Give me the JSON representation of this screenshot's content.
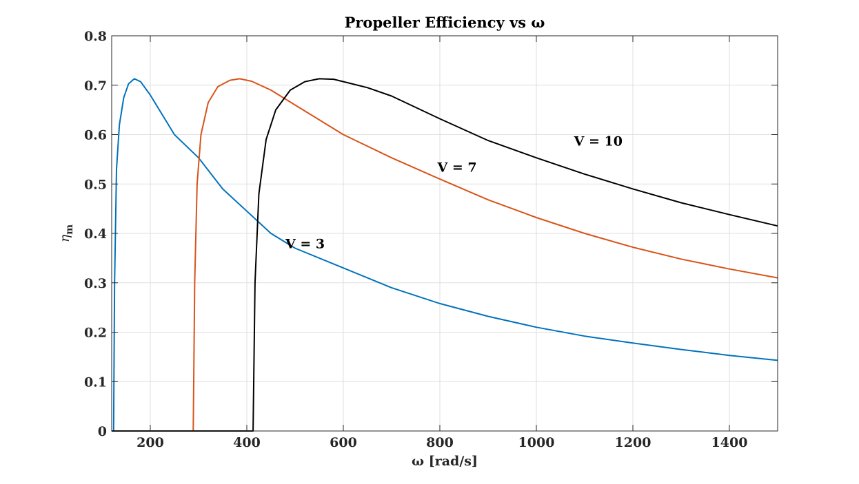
{
  "chart_data": {
    "type": "line",
    "title": "Propeller Efficiency vs ω",
    "xlabel": "ω [rad/s]",
    "ylabel": "η",
    "ylabel_subscript": "m",
    "xlim": [
      120,
      1500
    ],
    "ylim": [
      0,
      0.8
    ],
    "xticks": [
      200,
      400,
      600,
      800,
      1000,
      1200,
      1400
    ],
    "yticks": [
      0,
      0.1,
      0.2,
      0.3,
      0.4,
      0.5,
      0.6,
      0.7,
      0.8
    ],
    "ytick_labels": [
      "0",
      "0.1",
      "0.2",
      "0.3",
      "0.4",
      "0.5",
      "0.6",
      "0.7",
      "0.8"
    ],
    "grid": true,
    "series": [
      {
        "color": "#0072bd",
        "points": [
          [
            120,
            0
          ],
          [
            124,
            0
          ],
          [
            126,
            0.3
          ],
          [
            130,
            0.53
          ],
          [
            136,
            0.62
          ],
          [
            145,
            0.675
          ],
          [
            155,
            0.703
          ],
          [
            167,
            0.713
          ],
          [
            180,
            0.707
          ],
          [
            200,
            0.68
          ],
          [
            250,
            0.6
          ],
          [
            300,
            0.553
          ],
          [
            350,
            0.49
          ],
          [
            400,
            0.445
          ],
          [
            450,
            0.4
          ],
          [
            500,
            0.37
          ],
          [
            600,
            0.33
          ],
          [
            700,
            0.29
          ],
          [
            800,
            0.258
          ],
          [
            900,
            0.232
          ],
          [
            1000,
            0.21
          ],
          [
            1100,
            0.192
          ],
          [
            1200,
            0.178
          ],
          [
            1300,
            0.165
          ],
          [
            1400,
            0.153
          ],
          [
            1500,
            0.143
          ]
        ]
      },
      {
        "color": "#d95319",
        "points": [
          [
            120,
            0
          ],
          [
            289,
            0
          ],
          [
            292,
            0.3
          ],
          [
            297,
            0.5
          ],
          [
            305,
            0.6
          ],
          [
            320,
            0.665
          ],
          [
            340,
            0.697
          ],
          [
            365,
            0.71
          ],
          [
            385,
            0.713
          ],
          [
            410,
            0.708
          ],
          [
            450,
            0.69
          ],
          [
            500,
            0.66
          ],
          [
            600,
            0.6
          ],
          [
            700,
            0.553
          ],
          [
            800,
            0.51
          ],
          [
            900,
            0.468
          ],
          [
            1000,
            0.432
          ],
          [
            1100,
            0.4
          ],
          [
            1200,
            0.372
          ],
          [
            1300,
            0.348
          ],
          [
            1400,
            0.328
          ],
          [
            1500,
            0.31
          ]
        ]
      },
      {
        "color": "#000000",
        "points": [
          [
            120,
            0
          ],
          [
            413,
            0
          ],
          [
            417,
            0.3
          ],
          [
            425,
            0.48
          ],
          [
            440,
            0.59
          ],
          [
            460,
            0.65
          ],
          [
            490,
            0.69
          ],
          [
            520,
            0.707
          ],
          [
            550,
            0.713
          ],
          [
            580,
            0.712
          ],
          [
            650,
            0.695
          ],
          [
            700,
            0.678
          ],
          [
            800,
            0.632
          ],
          [
            900,
            0.588
          ],
          [
            1000,
            0.553
          ],
          [
            1100,
            0.52
          ],
          [
            1200,
            0.49
          ],
          [
            1300,
            0.462
          ],
          [
            1400,
            0.438
          ],
          [
            1500,
            0.415
          ]
        ]
      }
    ],
    "annotations": [
      {
        "text": "V = 3",
        "x": 480,
        "y": 0.37
      },
      {
        "text": "V = 7",
        "x": 795,
        "y": 0.525
      },
      {
        "text": "V = 10",
        "x": 1078,
        "y": 0.578
      }
    ]
  }
}
